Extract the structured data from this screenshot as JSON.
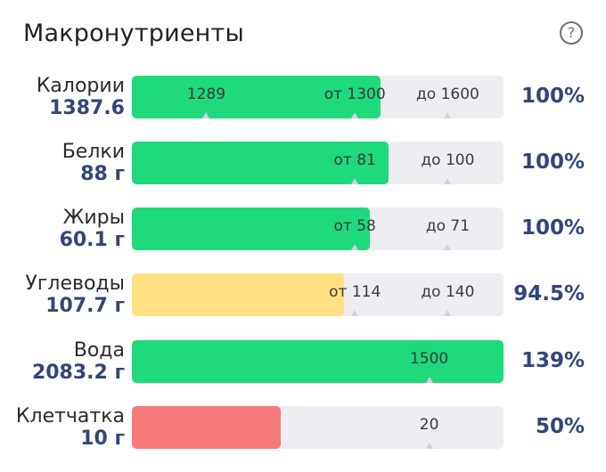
{
  "header": {
    "title": "Макронутриенты",
    "help_glyph": "?"
  },
  "colors": {
    "green": "#1fd97d",
    "yellow": "#ffe082",
    "red": "#f77a7a",
    "accent": "#33457a"
  },
  "rows": [
    {
      "name": "Калории",
      "value": "1387.6",
      "percent": "100%",
      "fill_fraction": 0.67,
      "color": "green",
      "marks": [
        {
          "text": "1289",
          "pos": 0.2
        },
        {
          "text": "от 1300",
          "pos": 0.6
        },
        {
          "text": "до 1600",
          "pos": 0.85
        }
      ]
    },
    {
      "name": "Белки",
      "value": "88 г",
      "percent": "100%",
      "fill_fraction": 0.69,
      "color": "green",
      "marks": [
        {
          "text": "от 81",
          "pos": 0.6
        },
        {
          "text": "до 100",
          "pos": 0.85
        }
      ]
    },
    {
      "name": "Жиры",
      "value": "60.1 г",
      "percent": "100%",
      "fill_fraction": 0.64,
      "color": "green",
      "marks": [
        {
          "text": "от 58",
          "pos": 0.6
        },
        {
          "text": "до 71",
          "pos": 0.85
        }
      ]
    },
    {
      "name": "Углеводы",
      "value": "107.7 г",
      "percent": "94.5%",
      "fill_fraction": 0.57,
      "color": "yellow",
      "marks": [
        {
          "text": "от 114",
          "pos": 0.6
        },
        {
          "text": "до 140",
          "pos": 0.85
        }
      ]
    },
    {
      "name": "Вода",
      "value": "2083.2 г",
      "percent": "139%",
      "fill_fraction": 1.0,
      "color": "green",
      "marks": [
        {
          "text": "1500",
          "pos": 0.8
        }
      ]
    },
    {
      "name": "Клетчатка",
      "value": "10 г",
      "percent": "50%",
      "fill_fraction": 0.4,
      "color": "red",
      "marks": [
        {
          "text": "20",
          "pos": 0.8
        }
      ]
    }
  ]
}
